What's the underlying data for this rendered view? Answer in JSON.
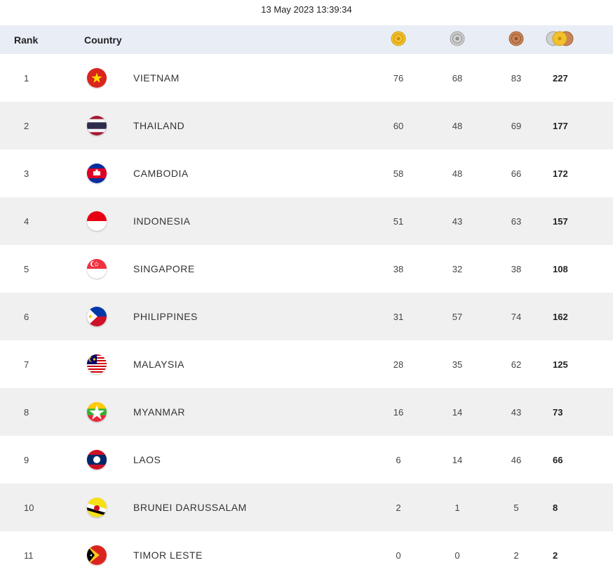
{
  "timestamp": "13 May 2023  13:39:34",
  "header": {
    "rank": "Rank",
    "country": "Country",
    "gold_icon": "gold-medal-icon",
    "silver_icon": "silver-medal-icon",
    "bronze_icon": "bronze-medal-icon",
    "total_icon": "all-medals-icon"
  },
  "colors": {
    "header_bg": "#e9eef6",
    "stripe_bg": "#f0f0f0",
    "gold": "#f2c12e",
    "silver": "#bdbdbd",
    "bronze": "#c98558"
  },
  "rows": [
    {
      "rank": "1",
      "country": "VIETNAM",
      "flag": "vietnam-flag-icon",
      "gold": "76",
      "silver": "68",
      "bronze": "83",
      "total": "227"
    },
    {
      "rank": "2",
      "country": "THAILAND",
      "flag": "thailand-flag-icon",
      "gold": "60",
      "silver": "48",
      "bronze": "69",
      "total": "177"
    },
    {
      "rank": "3",
      "country": "CAMBODIA",
      "flag": "cambodia-flag-icon",
      "gold": "58",
      "silver": "48",
      "bronze": "66",
      "total": "172"
    },
    {
      "rank": "4",
      "country": "INDONESIA",
      "flag": "indonesia-flag-icon",
      "gold": "51",
      "silver": "43",
      "bronze": "63",
      "total": "157"
    },
    {
      "rank": "5",
      "country": "SINGAPORE",
      "flag": "singapore-flag-icon",
      "gold": "38",
      "silver": "32",
      "bronze": "38",
      "total": "108"
    },
    {
      "rank": "6",
      "country": "PHILIPPINES",
      "flag": "philippines-flag-icon",
      "gold": "31",
      "silver": "57",
      "bronze": "74",
      "total": "162"
    },
    {
      "rank": "7",
      "country": "MALAYSIA",
      "flag": "malaysia-flag-icon",
      "gold": "28",
      "silver": "35",
      "bronze": "62",
      "total": "125"
    },
    {
      "rank": "8",
      "country": "MYANMAR",
      "flag": "myanmar-flag-icon",
      "gold": "16",
      "silver": "14",
      "bronze": "43",
      "total": "73"
    },
    {
      "rank": "9",
      "country": "LAOS",
      "flag": "laos-flag-icon",
      "gold": "6",
      "silver": "14",
      "bronze": "46",
      "total": "66"
    },
    {
      "rank": "10",
      "country": "BRUNEI DARUSSALAM",
      "flag": "brunei-flag-icon",
      "gold": "2",
      "silver": "1",
      "bronze": "5",
      "total": "8"
    },
    {
      "rank": "11",
      "country": "TIMOR LESTE",
      "flag": "timor-leste-flag-icon",
      "gold": "0",
      "silver": "0",
      "bronze": "2",
      "total": "2"
    }
  ]
}
